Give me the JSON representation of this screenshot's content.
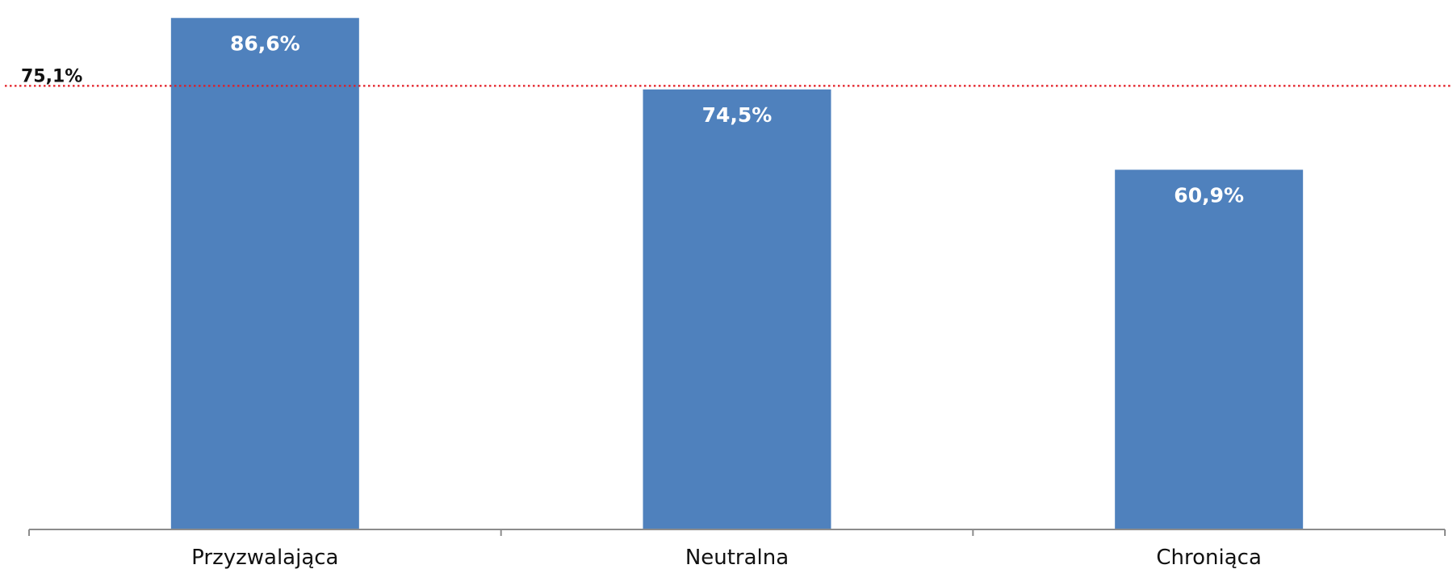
{
  "chart_data": {
    "type": "bar",
    "title": "",
    "xlabel": "",
    "ylabel": "",
    "categories": [
      "Przyzwalająca",
      "Neutralna",
      "Chroniąca"
    ],
    "values": [
      86.6,
      74.5,
      60.9
    ],
    "value_labels": [
      "86,6%",
      "74,5%",
      "60,9%"
    ],
    "ylim": [
      0,
      88
    ],
    "grid": false,
    "legend": "none",
    "reference_line": {
      "value": 75.1,
      "label": "75,1%",
      "style": "dotted",
      "color": "#e31b23"
    },
    "colors": {
      "bar": "#4f81bd",
      "axis": "#8c8c8c"
    }
  }
}
